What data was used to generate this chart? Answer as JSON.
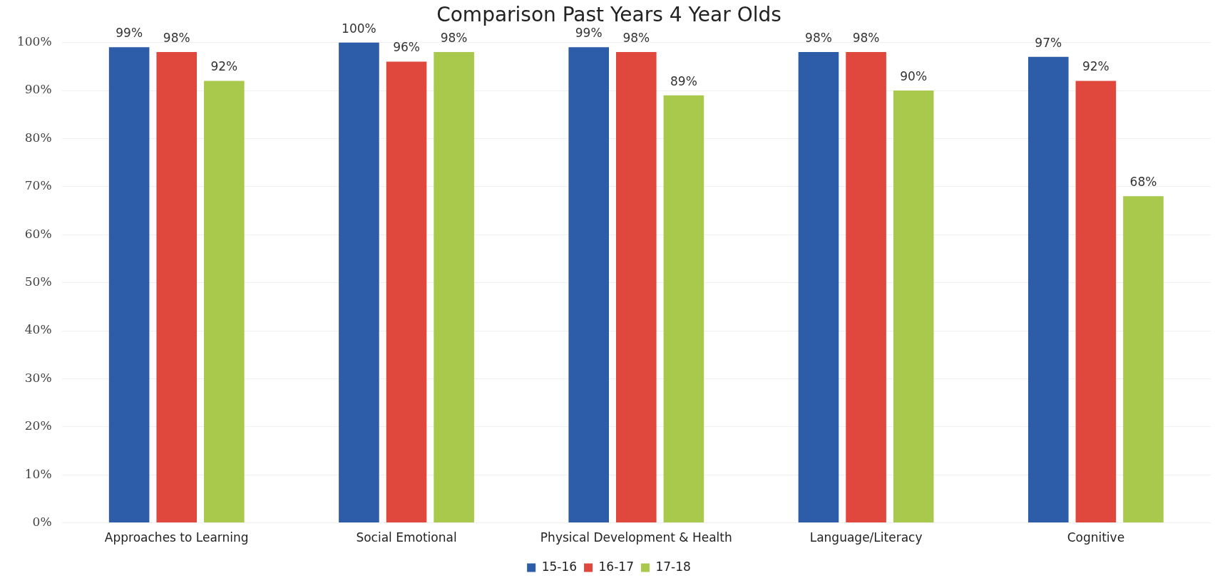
{
  "chart_data": {
    "type": "bar",
    "title": "Comparison Past Years 4 Year Olds",
    "categories": [
      "Approaches to Learning",
      "Social Emotional",
      "Physical Development & Health",
      "Language/Literacy",
      "Cognitive"
    ],
    "series": [
      {
        "name": "15-16",
        "color": "#2d5ca8",
        "values": [
          99,
          100,
          99,
          98,
          97
        ],
        "value_labels": [
          "99%",
          "100%",
          "99%",
          "98%",
          "97%"
        ]
      },
      {
        "name": "16-17",
        "color": "#e0483e",
        "values": [
          98,
          96,
          98,
          98,
          92
        ],
        "value_labels": [
          "98%",
          "96%",
          "98%",
          "98%",
          "92%"
        ]
      },
      {
        "name": "17-18",
        "color": "#a9c94c",
        "values": [
          92,
          98,
          89,
          90,
          68
        ],
        "value_labels": [
          "92%",
          "98%",
          "89%",
          "90%",
          "68%"
        ]
      }
    ],
    "ylim": [
      0,
      100
    ],
    "yticks": [
      {
        "value": 0,
        "label": "0%"
      },
      {
        "value": 10,
        "label": "10%"
      },
      {
        "value": 20,
        "label": "20%"
      },
      {
        "value": 30,
        "label": "30%"
      },
      {
        "value": 40,
        "label": "40%"
      },
      {
        "value": 50,
        "label": "50%"
      },
      {
        "value": 60,
        "label": "60%"
      },
      {
        "value": 70,
        "label": "70%"
      },
      {
        "value": 80,
        "label": "80%"
      },
      {
        "value": 90,
        "label": "90%"
      },
      {
        "value": 100,
        "label": "100%"
      }
    ],
    "grid": "y",
    "legend": "bottom"
  }
}
